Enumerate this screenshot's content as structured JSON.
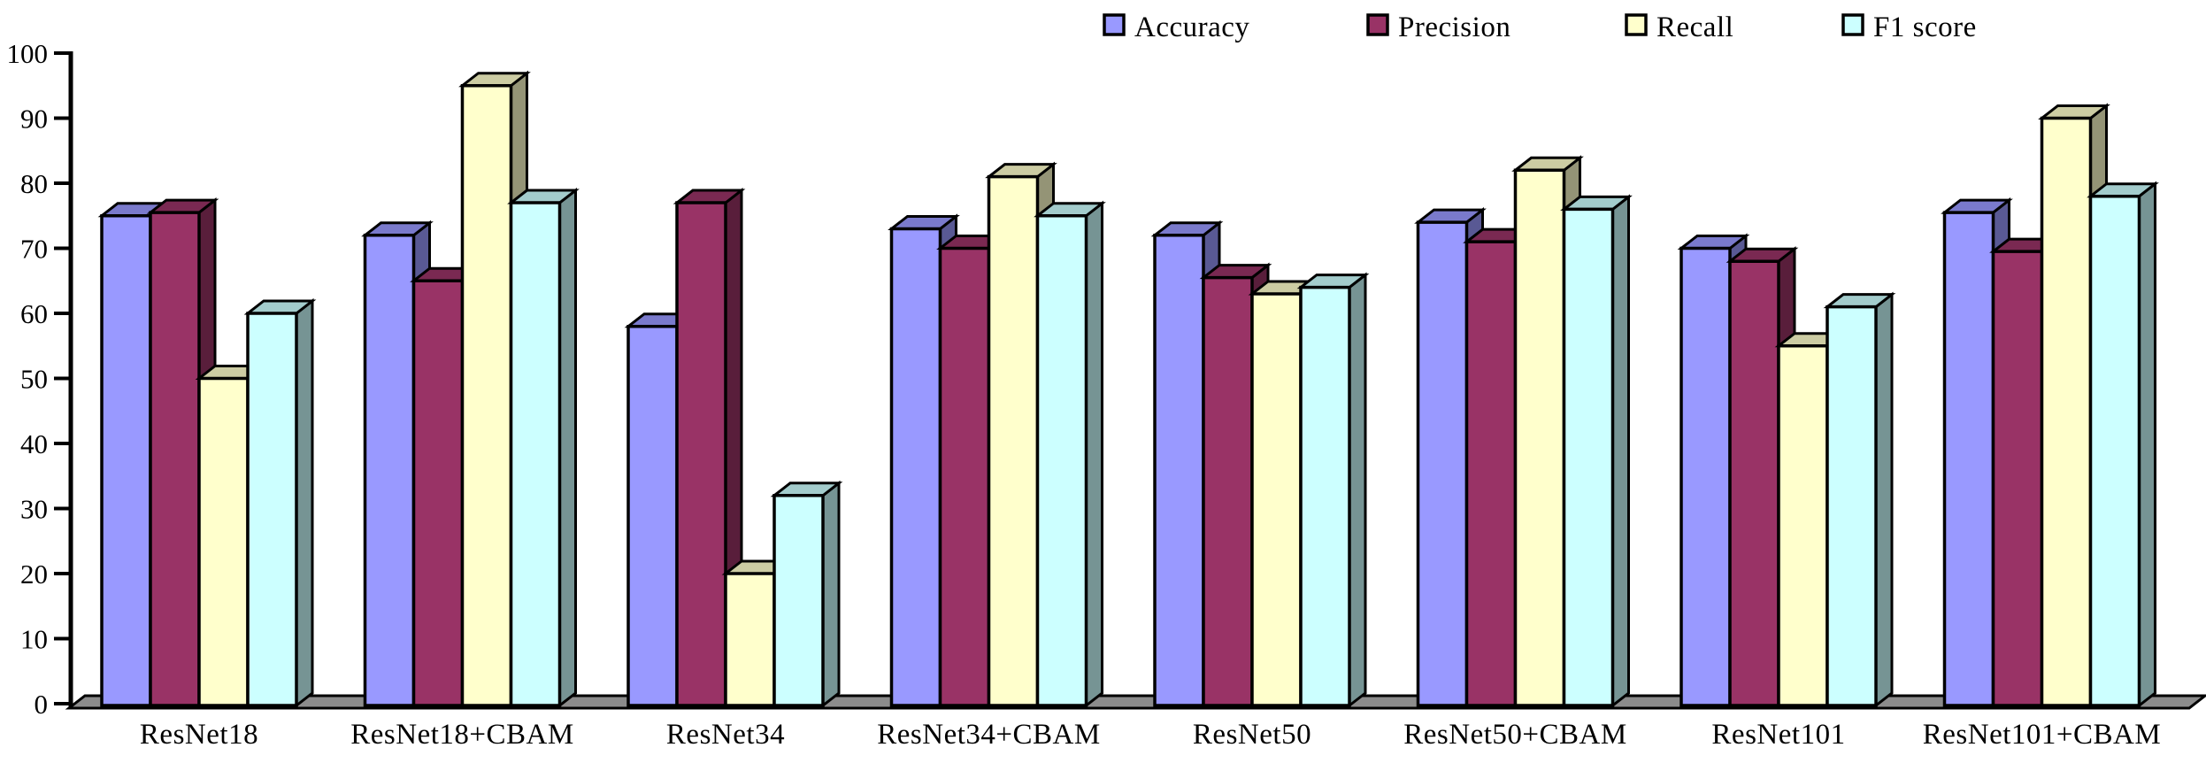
{
  "chart_data": {
    "type": "bar",
    "subtype": "3d-column",
    "title": "",
    "xlabel": "",
    "ylabel": "",
    "categories": [
      "ResNet18",
      "ResNet18+CBAM",
      "ResNet34",
      "ResNet34+CBAM",
      "ResNet50",
      "ResNet50+CBAM",
      "ResNet101",
      "ResNet101+CBAM"
    ],
    "series": [
      {
        "name": "Accuracy",
        "color": "#9999FF",
        "values": [
          75,
          72,
          58,
          73,
          72,
          74,
          70,
          75.5
        ]
      },
      {
        "name": "Precision",
        "color": "#993366",
        "values": [
          75.5,
          65,
          77,
          70,
          65.5,
          71,
          68,
          69.5
        ]
      },
      {
        "name": "Recall",
        "color": "#FFFFCC",
        "values": [
          50,
          95,
          20,
          81,
          63,
          82,
          55,
          90
        ]
      },
      {
        "name": "F1 score",
        "color": "#CCFFFF",
        "values": [
          60,
          77,
          32,
          75,
          64,
          76,
          61,
          78
        ]
      }
    ],
    "ylim": [
      0,
      100
    ],
    "yticks": [
      0,
      10,
      20,
      30,
      40,
      50,
      60,
      70,
      80,
      90,
      100
    ],
    "grid": false,
    "legend_position": "top",
    "floor_color": "#8C8C8C",
    "axis_color": "#000000",
    "outline_color": "#000000"
  }
}
